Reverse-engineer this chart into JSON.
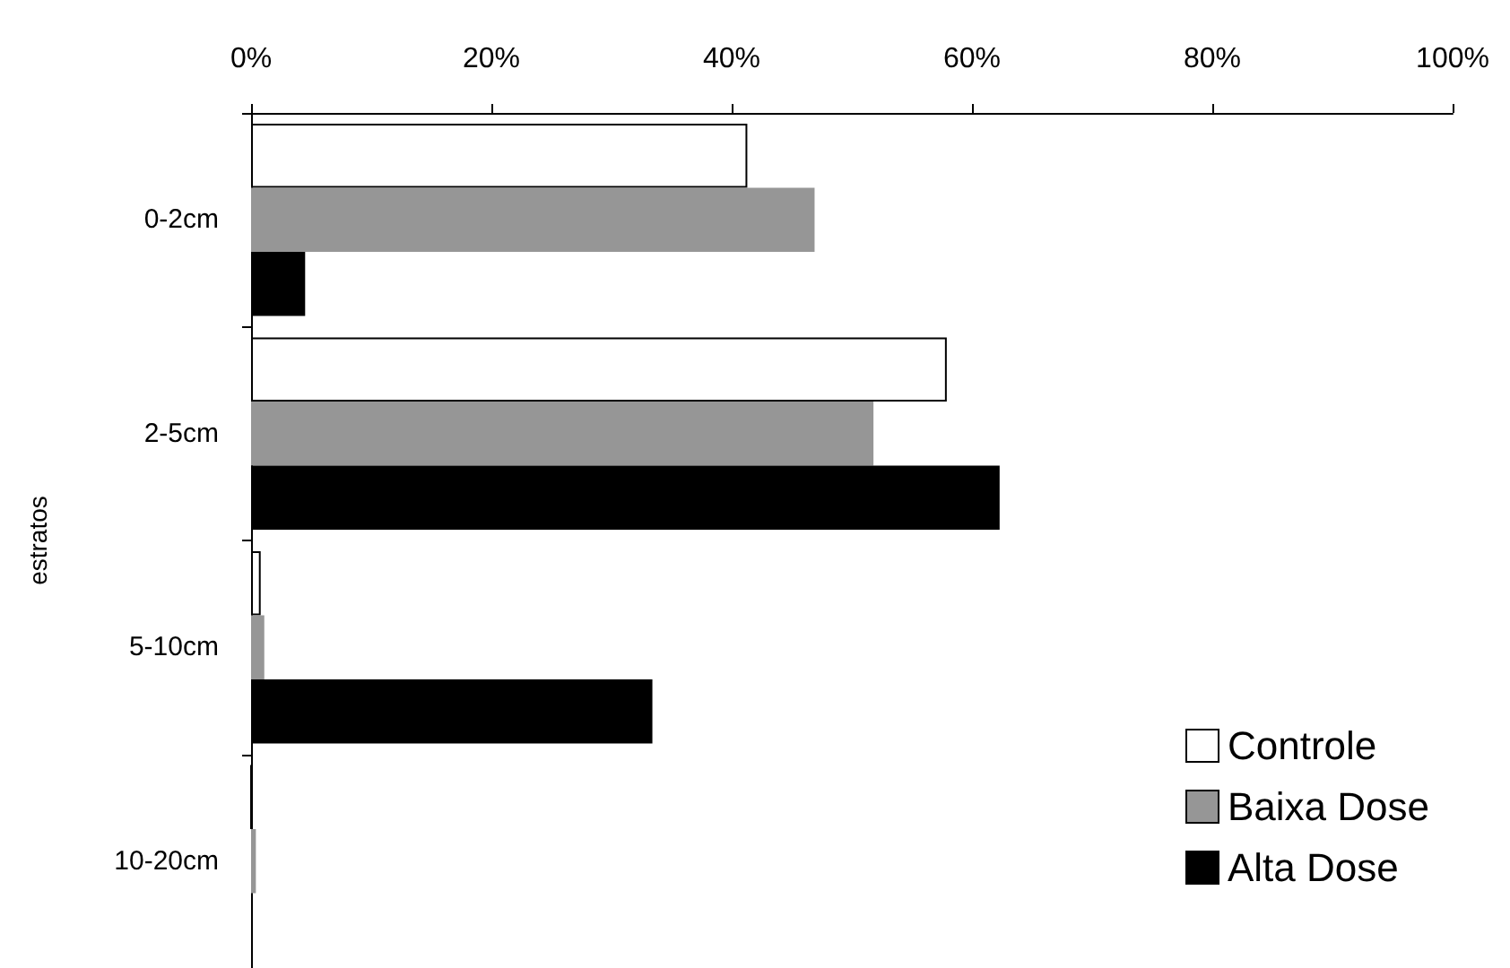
{
  "chart_data": {
    "type": "bar",
    "orientation": "horizontal",
    "ylabel": "estratos",
    "categories": [
      "0-2cm",
      "2-5cm",
      "5-10cm",
      "10-20cm"
    ],
    "series": [
      {
        "name": "Controle",
        "color": "#ffffff",
        "values": [
          41.3,
          57.9,
          0.8,
          0
        ]
      },
      {
        "name": "Baixa Dose",
        "color": "#969696",
        "values": [
          46.9,
          51.8,
          1.1,
          0.4
        ]
      },
      {
        "name": "Alta Dose",
        "color": "#000000",
        "values": [
          4.5,
          62.3,
          33.4,
          0
        ]
      }
    ],
    "xlim": [
      0,
      100
    ],
    "xticks": [
      {
        "value": 0,
        "label": "0%"
      },
      {
        "value": 20,
        "label": "20%"
      },
      {
        "value": 40,
        "label": "40%"
      },
      {
        "value": 60,
        "label": "60%"
      },
      {
        "value": 80,
        "label": "80%"
      },
      {
        "value": 100,
        "label": "100%"
      }
    ],
    "grid": false,
    "legend": "bottom right"
  }
}
